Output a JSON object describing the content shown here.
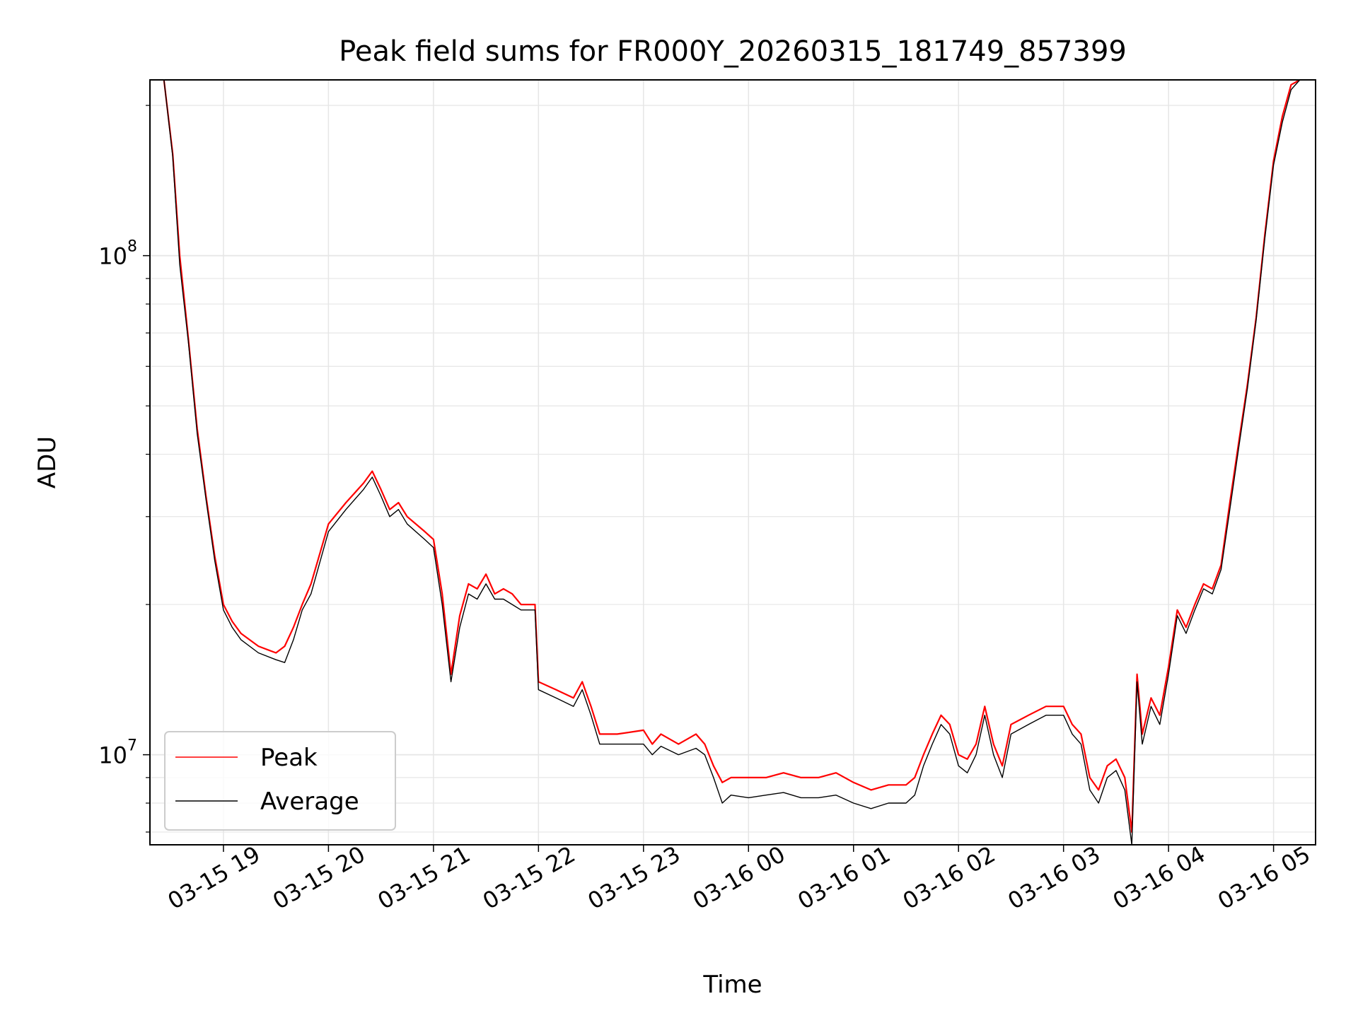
{
  "chart_data": {
    "type": "line",
    "title": "Peak field sums for FR000Y_20260315_181749_857399",
    "xlabel": "Time",
    "ylabel": "ADU",
    "yscale": "log",
    "ylim": [
      6600000,
      225000000
    ],
    "xlim": [
      "2026-03-15 18:18",
      "2026-03-16 05:24"
    ],
    "x_ticks": [
      {
        "t": "2026-03-15 19:00",
        "label": "03-15 19"
      },
      {
        "t": "2026-03-15 20:00",
        "label": "03-15 20"
      },
      {
        "t": "2026-03-15 21:00",
        "label": "03-15 21"
      },
      {
        "t": "2026-03-15 22:00",
        "label": "03-15 22"
      },
      {
        "t": "2026-03-15 23:00",
        "label": "03-15 23"
      },
      {
        "t": "2026-03-16 00:00",
        "label": "03-16 00"
      },
      {
        "t": "2026-03-16 01:00",
        "label": "03-16 01"
      },
      {
        "t": "2026-03-16 02:00",
        "label": "03-16 02"
      },
      {
        "t": "2026-03-16 03:00",
        "label": "03-16 03"
      },
      {
        "t": "2026-03-16 04:00",
        "label": "03-16 04"
      },
      {
        "t": "2026-03-16 05:00",
        "label": "03-16 05"
      }
    ],
    "y_ticks": [
      {
        "value": 10000000,
        "base": "10",
        "exp": "7"
      },
      {
        "value": 100000000,
        "base": "10",
        "exp": "8"
      }
    ],
    "grid": true,
    "legend_position": "lower-left",
    "series": [
      {
        "name": "Peak",
        "color": "#ff0000",
        "x": [
          "2026-03-15 18:26",
          "2026-03-15 18:31",
          "2026-03-15 18:35",
          "2026-03-15 18:40",
          "2026-03-15 18:45",
          "2026-03-15 18:50",
          "2026-03-15 18:55",
          "2026-03-15 19:00",
          "2026-03-15 19:05",
          "2026-03-15 19:10",
          "2026-03-15 19:20",
          "2026-03-15 19:30",
          "2026-03-15 19:35",
          "2026-03-15 19:40",
          "2026-03-15 19:45",
          "2026-03-15 19:50",
          "2026-03-15 20:00",
          "2026-03-15 20:10",
          "2026-03-15 20:20",
          "2026-03-15 20:25",
          "2026-03-15 20:30",
          "2026-03-15 20:35",
          "2026-03-15 20:40",
          "2026-03-15 20:45",
          "2026-03-15 20:55",
          "2026-03-15 21:00",
          "2026-03-15 21:05",
          "2026-03-15 21:10",
          "2026-03-15 21:15",
          "2026-03-15 21:20",
          "2026-03-15 21:25",
          "2026-03-15 21:30",
          "2026-03-15 21:35",
          "2026-03-15 21:40",
          "2026-03-15 21:45",
          "2026-03-15 21:50",
          "2026-03-15 21:58",
          "2026-03-15 22:00",
          "2026-03-15 22:10",
          "2026-03-15 22:20",
          "2026-03-15 22:25",
          "2026-03-15 22:30",
          "2026-03-15 22:35",
          "2026-03-15 22:45",
          "2026-03-15 23:00",
          "2026-03-15 23:05",
          "2026-03-15 23:10",
          "2026-03-15 23:20",
          "2026-03-15 23:30",
          "2026-03-15 23:35",
          "2026-03-15 23:40",
          "2026-03-15 23:45",
          "2026-03-15 23:50",
          "2026-03-16 00:00",
          "2026-03-16 00:10",
          "2026-03-16 00:20",
          "2026-03-16 00:30",
          "2026-03-16 00:40",
          "2026-03-16 00:50",
          "2026-03-16 01:00",
          "2026-03-16 01:10",
          "2026-03-16 01:20",
          "2026-03-16 01:30",
          "2026-03-16 01:35",
          "2026-03-16 01:40",
          "2026-03-16 01:45",
          "2026-03-16 01:50",
          "2026-03-16 01:55",
          "2026-03-16 02:00",
          "2026-03-16 02:05",
          "2026-03-16 02:10",
          "2026-03-16 02:15",
          "2026-03-16 02:20",
          "2026-03-16 02:25",
          "2026-03-16 02:30",
          "2026-03-16 02:40",
          "2026-03-16 02:50",
          "2026-03-16 03:00",
          "2026-03-16 03:05",
          "2026-03-16 03:10",
          "2026-03-16 03:15",
          "2026-03-16 03:20",
          "2026-03-16 03:25",
          "2026-03-16 03:30",
          "2026-03-16 03:35",
          "2026-03-16 03:39",
          "2026-03-16 03:42",
          "2026-03-16 03:45",
          "2026-03-16 03:50",
          "2026-03-16 03:55",
          "2026-03-16 04:00",
          "2026-03-16 04:05",
          "2026-03-16 04:10",
          "2026-03-16 04:15",
          "2026-03-16 04:20",
          "2026-03-16 04:25",
          "2026-03-16 04:30",
          "2026-03-16 04:35",
          "2026-03-16 04:40",
          "2026-03-16 04:45",
          "2026-03-16 04:50",
          "2026-03-16 04:55",
          "2026-03-16 05:00",
          "2026-03-16 05:05",
          "2026-03-16 05:10",
          "2026-03-16 05:15"
        ],
        "y": [
          225000000,
          160000000,
          100000000,
          68000000,
          45000000,
          33000000,
          25000000,
          20000000,
          18500000,
          17500000,
          16500000,
          16000000,
          16500000,
          18000000,
          20000000,
          22000000,
          29000000,
          32000000,
          35000000,
          37000000,
          34000000,
          31000000,
          32000000,
          30000000,
          28000000,
          27000000,
          21000000,
          14500000,
          19000000,
          22000000,
          21500000,
          23000000,
          21000000,
          21500000,
          21000000,
          20000000,
          20000000,
          14000000,
          13500000,
          13000000,
          14000000,
          12500000,
          11000000,
          11000000,
          11200000,
          10500000,
          11000000,
          10500000,
          11000000,
          10500000,
          9500000,
          8800000,
          9000000,
          9000000,
          9000000,
          9200000,
          9000000,
          9000000,
          9200000,
          8800000,
          8500000,
          8700000,
          8700000,
          9000000,
          10000000,
          11000000,
          12000000,
          11500000,
          10000000,
          9800000,
          10500000,
          12500000,
          10500000,
          9500000,
          11500000,
          12000000,
          12500000,
          12500000,
          11500000,
          11000000,
          9000000,
          8500000,
          9500000,
          9800000,
          9000000,
          7000000,
          14500000,
          11000000,
          13000000,
          12000000,
          15000000,
          19500000,
          18000000,
          20000000,
          22000000,
          21500000,
          24000000,
          32000000,
          42000000,
          55000000,
          75000000,
          110000000,
          155000000,
          190000000,
          220000000,
          225000000
        ]
      },
      {
        "name": "Average",
        "color": "#000000",
        "x": [
          "2026-03-15 18:26",
          "2026-03-15 18:31",
          "2026-03-15 18:35",
          "2026-03-15 18:40",
          "2026-03-15 18:45",
          "2026-03-15 18:50",
          "2026-03-15 18:55",
          "2026-03-15 19:00",
          "2026-03-15 19:05",
          "2026-03-15 19:10",
          "2026-03-15 19:20",
          "2026-03-15 19:30",
          "2026-03-15 19:35",
          "2026-03-15 19:40",
          "2026-03-15 19:45",
          "2026-03-15 19:50",
          "2026-03-15 20:00",
          "2026-03-15 20:10",
          "2026-03-15 20:20",
          "2026-03-15 20:25",
          "2026-03-15 20:30",
          "2026-03-15 20:35",
          "2026-03-15 20:40",
          "2026-03-15 20:45",
          "2026-03-15 20:55",
          "2026-03-15 21:00",
          "2026-03-15 21:05",
          "2026-03-15 21:10",
          "2026-03-15 21:15",
          "2026-03-15 21:20",
          "2026-03-15 21:25",
          "2026-03-15 21:30",
          "2026-03-15 21:35",
          "2026-03-15 21:40",
          "2026-03-15 21:45",
          "2026-03-15 21:50",
          "2026-03-15 21:58",
          "2026-03-15 22:00",
          "2026-03-15 22:10",
          "2026-03-15 22:20",
          "2026-03-15 22:25",
          "2026-03-15 22:30",
          "2026-03-15 22:35",
          "2026-03-15 22:45",
          "2026-03-15 23:00",
          "2026-03-15 23:05",
          "2026-03-15 23:10",
          "2026-03-15 23:20",
          "2026-03-15 23:30",
          "2026-03-15 23:35",
          "2026-03-15 23:40",
          "2026-03-15 23:45",
          "2026-03-15 23:50",
          "2026-03-16 00:00",
          "2026-03-16 00:10",
          "2026-03-16 00:20",
          "2026-03-16 00:30",
          "2026-03-16 00:40",
          "2026-03-16 00:50",
          "2026-03-16 01:00",
          "2026-03-16 01:10",
          "2026-03-16 01:20",
          "2026-03-16 01:30",
          "2026-03-16 01:35",
          "2026-03-16 01:40",
          "2026-03-16 01:45",
          "2026-03-16 01:50",
          "2026-03-16 01:55",
          "2026-03-16 02:00",
          "2026-03-16 02:05",
          "2026-03-16 02:10",
          "2026-03-16 02:15",
          "2026-03-16 02:20",
          "2026-03-16 02:25",
          "2026-03-16 02:30",
          "2026-03-16 02:40",
          "2026-03-16 02:50",
          "2026-03-16 03:00",
          "2026-03-16 03:05",
          "2026-03-16 03:10",
          "2026-03-16 03:15",
          "2026-03-16 03:20",
          "2026-03-16 03:25",
          "2026-03-16 03:30",
          "2026-03-16 03:35",
          "2026-03-16 03:39",
          "2026-03-16 03:42",
          "2026-03-16 03:45",
          "2026-03-16 03:50",
          "2026-03-16 03:55",
          "2026-03-16 04:00",
          "2026-03-16 04:05",
          "2026-03-16 04:10",
          "2026-03-16 04:15",
          "2026-03-16 04:20",
          "2026-03-16 04:25",
          "2026-03-16 04:30",
          "2026-03-16 04:35",
          "2026-03-16 04:40",
          "2026-03-16 04:45",
          "2026-03-16 04:50",
          "2026-03-16 04:55",
          "2026-03-16 05:00",
          "2026-03-16 05:05",
          "2026-03-16 05:10",
          "2026-03-16 05:15"
        ],
        "y": [
          225000000,
          158000000,
          96000000,
          67000000,
          44000000,
          32500000,
          24500000,
          19500000,
          18000000,
          17000000,
          16000000,
          15500000,
          15300000,
          17000000,
          19500000,
          21000000,
          28000000,
          31000000,
          34000000,
          36000000,
          33000000,
          30000000,
          31000000,
          29000000,
          27000000,
          26000000,
          20000000,
          14000000,
          18000000,
          21000000,
          20500000,
          22000000,
          20500000,
          20500000,
          20000000,
          19500000,
          19500000,
          13500000,
          13000000,
          12500000,
          13500000,
          12000000,
          10500000,
          10500000,
          10500000,
          10000000,
          10400000,
          10000000,
          10300000,
          10000000,
          9000000,
          8000000,
          8300000,
          8200000,
          8300000,
          8400000,
          8200000,
          8200000,
          8300000,
          8000000,
          7800000,
          8000000,
          8000000,
          8300000,
          9500000,
          10500000,
          11500000,
          11000000,
          9500000,
          9200000,
          10000000,
          12000000,
          10000000,
          9000000,
          11000000,
          11500000,
          12000000,
          12000000,
          11000000,
          10500000,
          8500000,
          8000000,
          9000000,
          9300000,
          8500000,
          6600000,
          14000000,
          10500000,
          12500000,
          11500000,
          14500000,
          19000000,
          17500000,
          19500000,
          21500000,
          21000000,
          23500000,
          31000000,
          41000000,
          54000000,
          74000000,
          108000000,
          152000000,
          185000000,
          215000000,
          225000000
        ]
      }
    ]
  }
}
